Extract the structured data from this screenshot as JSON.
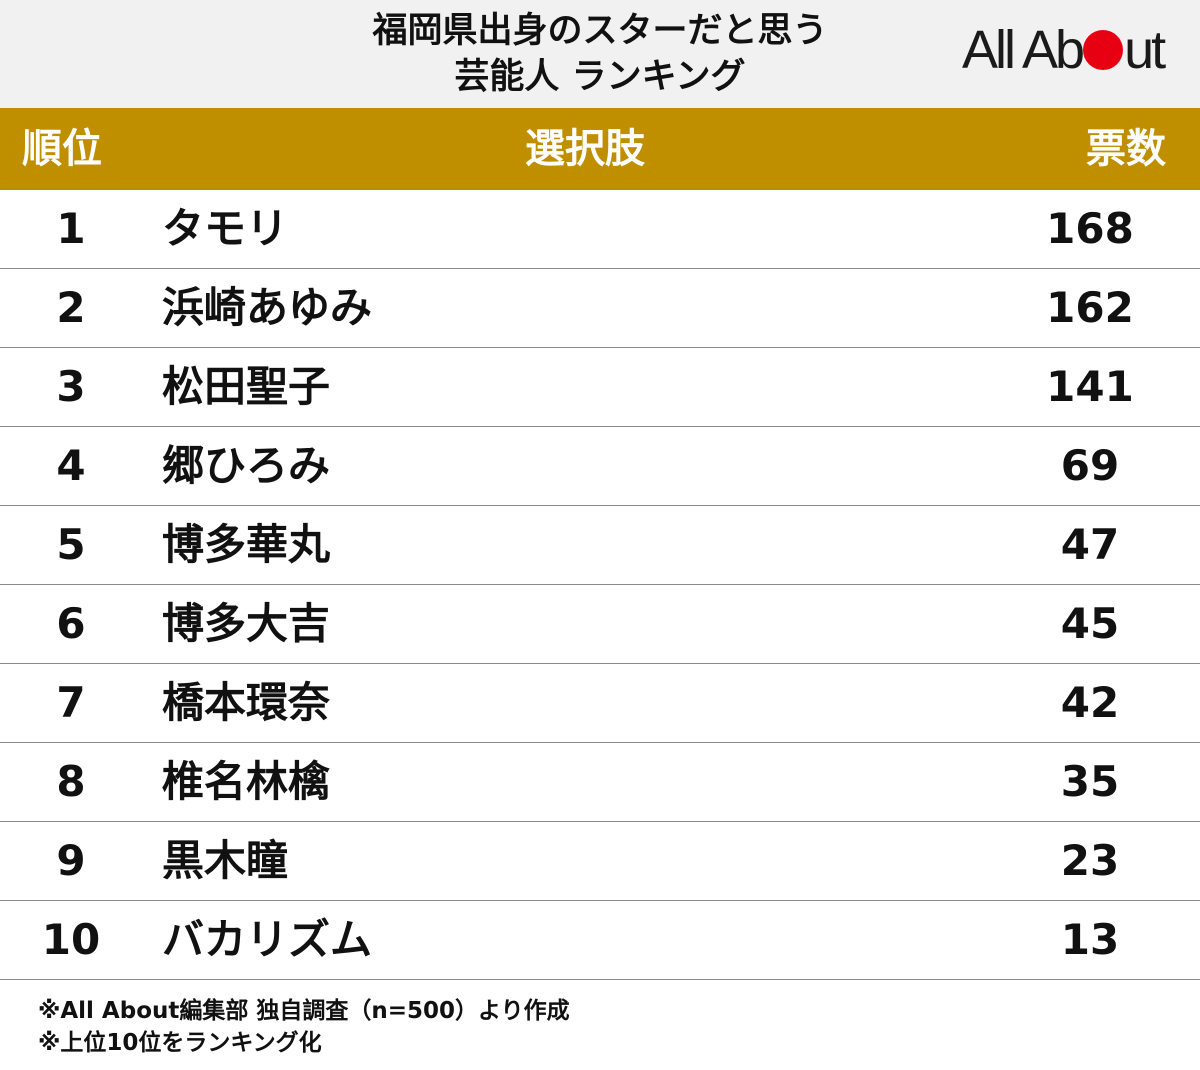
{
  "header": {
    "title_line1": "福岡県出身のスターだと思う",
    "title_line2": "芸能人 ランキング",
    "logo": "All About",
    "logo_accent_color": "#e60012"
  },
  "table": {
    "header_color": "#bf8f00",
    "col_rank": "順位",
    "col_choice": "選択肢",
    "col_votes": "票数"
  },
  "chart_data": {
    "type": "table",
    "title": "福岡県出身のスターだと思う芸能人 ランキング",
    "columns": [
      "順位",
      "選択肢",
      "票数"
    ],
    "rows": [
      {
        "rank": "1",
        "name": "タモリ",
        "votes": "168"
      },
      {
        "rank": "2",
        "name": "浜崎あゆみ",
        "votes": "162"
      },
      {
        "rank": "3",
        "name": "松田聖子",
        "votes": "141"
      },
      {
        "rank": "4",
        "name": "郷ひろみ",
        "votes": "69"
      },
      {
        "rank": "5",
        "name": "博多華丸",
        "votes": "47"
      },
      {
        "rank": "6",
        "name": "博多大吉",
        "votes": "45"
      },
      {
        "rank": "7",
        "name": "橋本環奈",
        "votes": "42"
      },
      {
        "rank": "8",
        "name": "椎名林檎",
        "votes": "35"
      },
      {
        "rank": "9",
        "name": "黒木瞳",
        "votes": "23"
      },
      {
        "rank": "10",
        "name": "バカリズム",
        "votes": "13"
      }
    ]
  },
  "notes": {
    "line1": "※All About編集部 独自調査（n=500）より作成",
    "line2": "※上位10位をランキング化"
  }
}
